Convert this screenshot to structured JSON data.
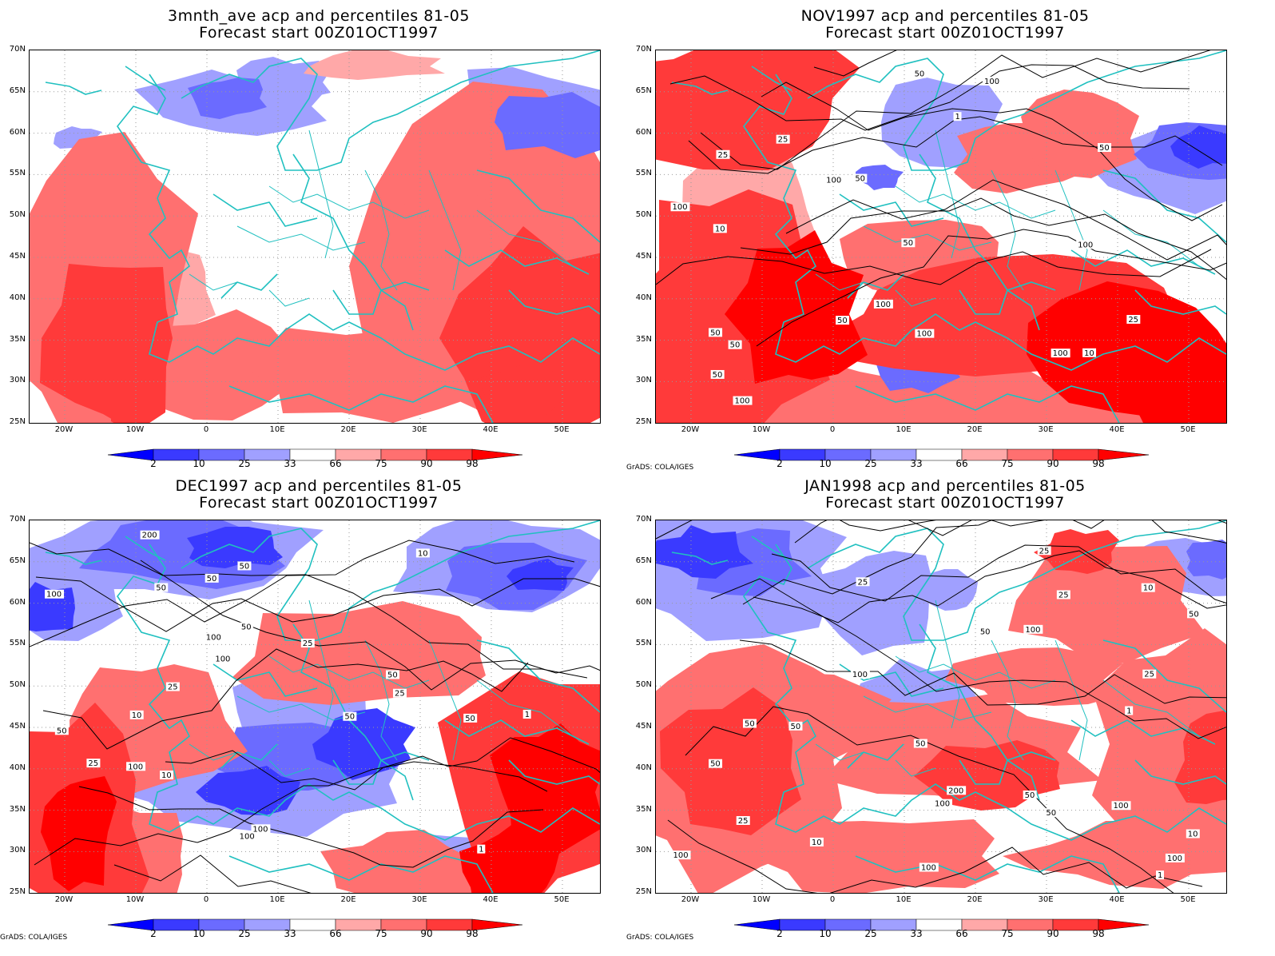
{
  "panels": [
    {
      "title_line1": "3mnth_ave acp and percentiles 81-05",
      "title_line2": "Forecast start 00Z01OCT1997",
      "credit": "",
      "variant": 0
    },
    {
      "title_line1": "NOV1997 acp and percentiles 81-05",
      "title_line2": "Forecast start 00Z01OCT1997",
      "credit": "GrADS: COLA/IGES",
      "variant": 1,
      "contour_labels": [
        "100",
        "50",
        "50",
        "50",
        "100",
        "100",
        "100",
        "50",
        "100",
        "50",
        "100",
        "50",
        "50",
        "100",
        "50",
        "25",
        "10",
        "10",
        "1",
        "25",
        "25",
        "100"
      ]
    },
    {
      "title_line1": "DEC1997 acp and percentiles 81-05",
      "title_line2": "Forecast start 00Z01OCT1997",
      "credit": "GrADS: COLA/IGES",
      "variant": 2,
      "contour_labels": [
        "100",
        "50",
        "50",
        "50",
        "200",
        "100",
        "100",
        "50",
        "50",
        "100",
        "25",
        "50",
        "100",
        "50",
        "50",
        "100",
        "25",
        "25",
        "1",
        "10",
        "10",
        "1",
        "25",
        "10"
      ]
    },
    {
      "title_line1": "JAN1998 acp and percentiles 81-05",
      "title_line2": "Forecast start 00Z01OCT1997",
      "credit": "GrADS: COLA/IGES",
      "variant": 3,
      "contour_labels": [
        "100",
        "50",
        "50",
        "100",
        "50",
        "200",
        "50",
        "100",
        "100",
        "100",
        "50",
        "100",
        "100",
        "50",
        "50",
        "50",
        "25",
        "10",
        "10",
        "25",
        "25",
        "1",
        "1",
        "10",
        "25",
        "25"
      ]
    }
  ],
  "axes": {
    "lat_labels": [
      "70N",
      "65N",
      "60N",
      "55N",
      "50N",
      "45N",
      "40N",
      "35N",
      "30N",
      "25N"
    ],
    "lon_labels": [
      "20W",
      "10W",
      "0",
      "10E",
      "20E",
      "30E",
      "40E",
      "50E"
    ]
  },
  "colorbar": {
    "labels": [
      "2",
      "10",
      "25",
      "33",
      "66",
      "75",
      "90",
      "98"
    ],
    "colors": [
      "#0000ff",
      "#3a3aff",
      "#6b6bff",
      "#a0a0ff",
      "#ffffff",
      "#ffa8a8",
      "#ff7070",
      "#ff3a3a",
      "#ff0000"
    ]
  }
}
